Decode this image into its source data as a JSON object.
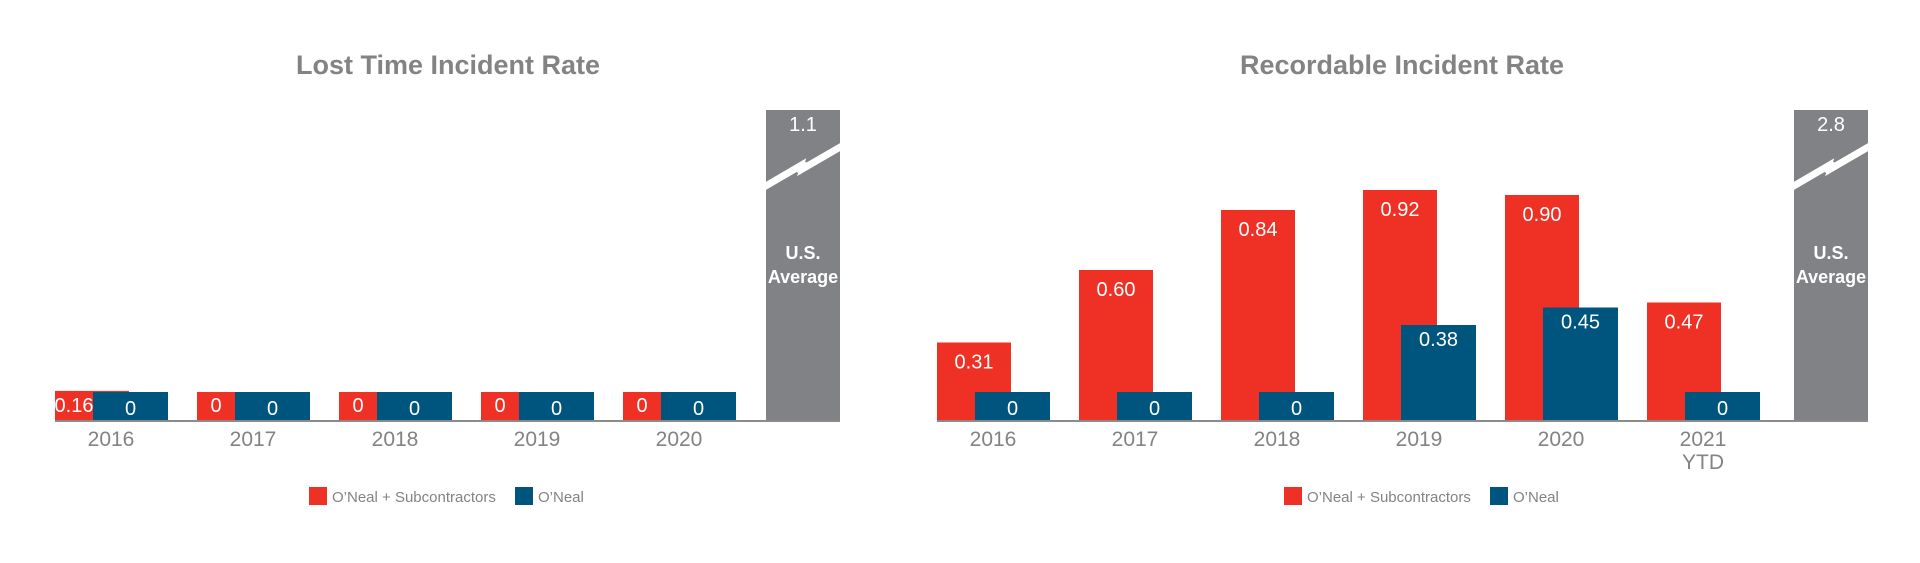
{
  "colors": {
    "red": "#ee3124",
    "blue": "#00557f",
    "gray": "#808285",
    "text": "#838383",
    "baseline": "#8a8a8a"
  },
  "chart_data": [
    {
      "type": "bar",
      "title": "Lost Time Incident Rate",
      "categories": [
        "2016",
        "2017",
        "2018",
        "2019",
        "2020"
      ],
      "category_sublabels": [
        "",
        "",
        "",
        "",
        ""
      ],
      "series": [
        {
          "name": "O’Neal + Subcontractors",
          "values": [
            0.16,
            0,
            0,
            0,
            0
          ],
          "labels": [
            "0.16",
            "0",
            "0",
            "0",
            "0"
          ]
        },
        {
          "name": "O’Neal",
          "values": [
            0,
            0,
            0,
            0,
            0
          ],
          "labels": [
            "0",
            "0",
            "0",
            "0",
            "0"
          ]
        }
      ],
      "reference": {
        "label_line1": "U.S.",
        "label_line2": "Average",
        "value": 1.1,
        "value_label": "1.1",
        "axis_break": true
      },
      "ylim": [
        0,
        1.1
      ],
      "legend": "bottom"
    },
    {
      "type": "bar",
      "title": "Recordable Incident Rate",
      "categories": [
        "2016",
        "2017",
        "2018",
        "2019",
        "2020",
        "2021"
      ],
      "category_sublabels": [
        "",
        "",
        "",
        "",
        "",
        "YTD"
      ],
      "series": [
        {
          "name": "O’Neal + Subcontractors",
          "values": [
            0.31,
            0.6,
            0.84,
            0.92,
            0.9,
            0.47
          ],
          "labels": [
            "0.31",
            "0.60",
            "0.84",
            "0.92",
            "0.90",
            "0.47"
          ]
        },
        {
          "name": "O’Neal",
          "values": [
            0,
            0,
            0,
            0.38,
            0.45,
            0
          ],
          "labels": [
            "0",
            "0",
            "0",
            "0.38",
            "0.45",
            "0"
          ]
        }
      ],
      "reference": {
        "label_line1": "U.S.",
        "label_line2": "Average",
        "value": 2.8,
        "value_label": "2.8",
        "axis_break": true
      },
      "ylim": [
        0,
        2.8
      ],
      "legend": "bottom"
    }
  ]
}
